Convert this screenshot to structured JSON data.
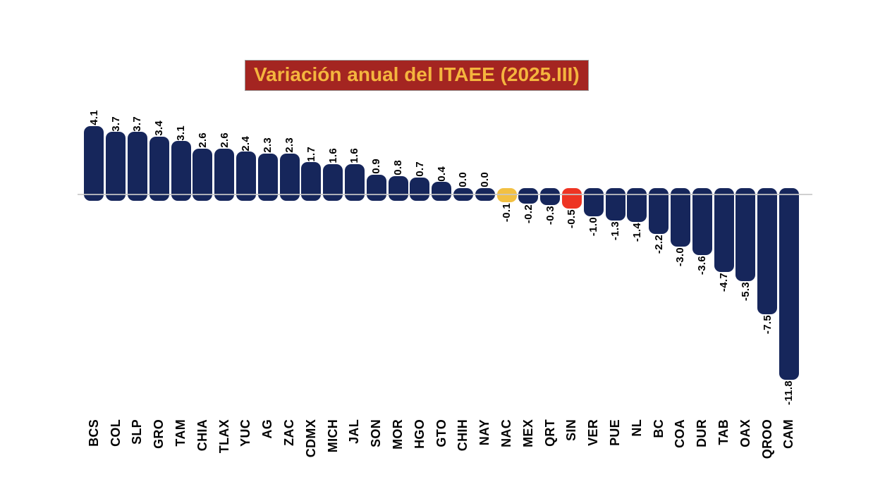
{
  "title": {
    "text": "Variación anual del ITAEE (2025.III)",
    "bg_color": "#A42521",
    "text_color": "#F4B53E"
  },
  "chart_data": {
    "type": "bar",
    "orientation": "vertical",
    "title": "Variación anual del ITAEE (2025.III)",
    "xlabel": "",
    "ylabel": "",
    "categories": [
      "BCS",
      "COL",
      "SLP",
      "GRO",
      "TAM",
      "CHIA",
      "TLAX",
      "YUC",
      "AG",
      "ZAC",
      "CDMX",
      "MICH",
      "JAL",
      "SON",
      "MOR",
      "HGO",
      "GTO",
      "CHIH",
      "NAY",
      "NAC",
      "MEX",
      "QRT",
      "SIN",
      "VER",
      "PUE",
      "NL",
      "BC",
      "COA",
      "DUR",
      "TAB",
      "OAX",
      "QROO",
      "CAM"
    ],
    "values": [
      4.1,
      3.7,
      3.7,
      3.4,
      3.1,
      2.6,
      2.6,
      2.4,
      2.3,
      2.3,
      1.7,
      1.6,
      1.6,
      0.9,
      0.8,
      0.7,
      0.4,
      0.0,
      0.0,
      -0.1,
      -0.2,
      -0.3,
      -0.5,
      -1.0,
      -1.3,
      -1.4,
      -2.2,
      -3.0,
      -3.6,
      -4.7,
      -5.3,
      -7.5,
      -11.8
    ],
    "value_labels": [
      "4.1",
      "3.7",
      "3.7",
      "3.4",
      "3.1",
      "2.6",
      "2.6",
      "2.4",
      "2.3",
      "2.3",
      "1.7",
      "1.6",
      "1.6",
      "0.9",
      "0.8",
      "0.7",
      "0.4",
      "0.0",
      "0.0",
      "-0.1",
      "-0.2",
      "-0.3",
      "-0.5",
      "-1.0",
      "-1.3",
      "-1.4",
      "-2.2",
      "-3.0",
      "-3.6",
      "-4.7",
      "-5.3",
      "-7.5",
      "-11.8"
    ],
    "bar_colors": {
      "default": "#16265B",
      "NAC": "#F2C043",
      "SIN": "#EE3423"
    },
    "zero_line_color": "rgba(200,200,200,0.85)",
    "ylim": [
      -12.5,
      4.5
    ],
    "grid": false,
    "legend": false,
    "sorted": "descending"
  }
}
